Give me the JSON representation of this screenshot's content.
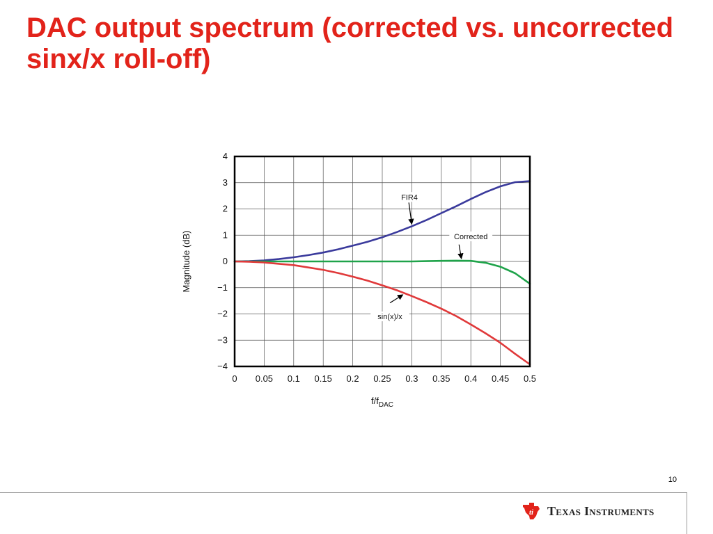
{
  "slide": {
    "title": "DAC output spectrum (corrected vs. uncorrected sinx/x roll-off)",
    "page_number": "10"
  },
  "footer": {
    "brand_name": "Texas Instruments",
    "logo_icon": "ti-logo-icon",
    "brand_color": "#e2231a"
  },
  "chart_data": {
    "type": "line",
    "title": "",
    "xlabel": "f/f",
    "xlabel_sub": "DAC",
    "ylabel": "Magnitude (dB)",
    "xlim": [
      0,
      0.5
    ],
    "ylim": [
      -4,
      4
    ],
    "x_ticks": [
      0,
      0.05,
      0.1,
      0.15,
      0.2,
      0.25,
      0.3,
      0.35,
      0.4,
      0.45,
      0.5
    ],
    "x_tick_labels": [
      "0",
      "0.05",
      "0.1",
      "0.15",
      "0.2",
      "0.25",
      "0.3",
      "0.35",
      "0.4",
      "0.45",
      "0.5"
    ],
    "y_ticks": [
      -4,
      -3,
      -2,
      -1,
      0,
      1,
      2,
      3,
      4
    ],
    "y_tick_labels": [
      "−4",
      "−3",
      "−2",
      "−1",
      "0",
      "1",
      "2",
      "3",
      "4"
    ],
    "grid": true,
    "x": [
      0,
      0.025,
      0.05,
      0.075,
      0.1,
      0.125,
      0.15,
      0.175,
      0.2,
      0.225,
      0.25,
      0.275,
      0.3,
      0.325,
      0.35,
      0.375,
      0.4,
      0.425,
      0.45,
      0.475,
      0.5
    ],
    "series": [
      {
        "name": "FIR4",
        "color": "#3a3a9c",
        "values": [
          0,
          0.01,
          0.04,
          0.09,
          0.16,
          0.24,
          0.34,
          0.46,
          0.6,
          0.75,
          0.92,
          1.12,
          1.34,
          1.58,
          1.84,
          2.1,
          2.38,
          2.64,
          2.86,
          3.02,
          3.06
        ]
      },
      {
        "name": "Corrected",
        "color": "#1fa34a",
        "values": [
          0,
          0,
          0,
          0,
          0,
          0,
          0,
          0,
          0,
          0,
          0,
          0,
          0,
          0.01,
          0.02,
          0.03,
          0.02,
          -0.05,
          -0.2,
          -0.45,
          -0.85
        ]
      },
      {
        "name": "sin(x)/x",
        "color": "#e0393a",
        "values": [
          0,
          -0.01,
          -0.04,
          -0.09,
          -0.14,
          -0.23,
          -0.32,
          -0.44,
          -0.58,
          -0.73,
          -0.91,
          -1.1,
          -1.32,
          -1.55,
          -1.8,
          -2.08,
          -2.4,
          -2.74,
          -3.1,
          -3.52,
          -3.92
        ]
      }
    ],
    "annotations": [
      {
        "text": "FIR4",
        "series": "FIR4"
      },
      {
        "text": "Corrected",
        "series": "Corrected"
      },
      {
        "text": "sin(x)/x",
        "series": "sin(x)/x"
      }
    ]
  }
}
